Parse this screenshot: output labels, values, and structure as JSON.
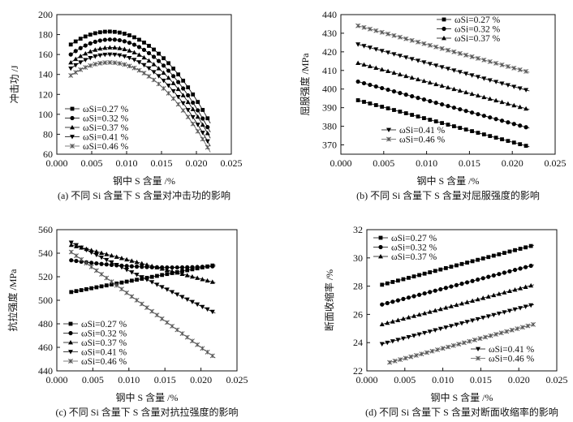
{
  "figure": {
    "colors": {
      "ink": "#111111",
      "series": "#000000",
      "grey_series": "#555555"
    }
  },
  "chart_data": [
    {
      "panel": "a",
      "type": "line",
      "caption": "(a) 不同 Si 含量下 S 含量对冲击功的影响",
      "xlabel": "钢中 S 含量 /%",
      "ylabel": "冲击功 /J",
      "xlim": [
        0.0,
        0.025
      ],
      "ylim": [
        60,
        200
      ],
      "xticks": [
        "0.000",
        "0.005",
        "0.010",
        "0.015",
        "0.020",
        "0.025"
      ],
      "yticks": [
        "60",
        "80",
        "100",
        "120",
        "140",
        "160",
        "180",
        "200"
      ],
      "legend_position": "bottom-left",
      "series": [
        {
          "name": "ωSi=0.27 %",
          "marker": "square",
          "model": "quad",
          "x_range": [
            0.002,
            0.022
          ],
          "points": [
            [
              0.002,
              170
            ],
            [
              0.0075,
              183
            ],
            [
              0.022,
              91
            ]
          ]
        },
        {
          "name": "ωSi=0.32 %",
          "marker": "circle",
          "model": "quad",
          "x_range": [
            0.002,
            0.022
          ],
          "points": [
            [
              0.002,
              160
            ],
            [
              0.0075,
              175
            ],
            [
              0.022,
              82
            ]
          ]
        },
        {
          "name": "ωSi=0.37 %",
          "marker": "triangle-up",
          "model": "quad",
          "x_range": [
            0.002,
            0.022
          ],
          "points": [
            [
              0.002,
              152
            ],
            [
              0.0075,
              167
            ],
            [
              0.022,
              76
            ]
          ]
        },
        {
          "name": "ωSi=0.41 %",
          "marker": "triangle-down",
          "model": "quad",
          "x_range": [
            0.002,
            0.022
          ],
          "points": [
            [
              0.002,
              146
            ],
            [
              0.0075,
              160
            ],
            [
              0.022,
              68
            ]
          ]
        },
        {
          "name": "ωSi=0.46 %",
          "marker": "star",
          "model": "quad",
          "x_range": [
            0.002,
            0.022
          ],
          "points": [
            [
              0.002,
              139
            ],
            [
              0.0075,
              152
            ],
            [
              0.022,
              62
            ]
          ]
        }
      ]
    },
    {
      "panel": "b",
      "type": "line",
      "caption": "(b) 不同 Si 含量下 S 含量对屈服强度的影响",
      "xlabel": "钢中 S 含量 /%",
      "ylabel": "屈服强度 /MPa",
      "xlim": [
        0.0,
        0.025
      ],
      "ylim": [
        365,
        440
      ],
      "xticks": [
        "0.000",
        "0.005",
        "0.010",
        "0.015",
        "0.020",
        "0.025"
      ],
      "yticks": [
        "370",
        "380",
        "390",
        "400",
        "410",
        "420",
        "430",
        "440"
      ],
      "legend_position": "split: top-right and bottom-left",
      "series": [
        {
          "name": "ωSi=0.27 %",
          "marker": "square",
          "model": "linear",
          "x_range": [
            0.002,
            0.022
          ],
          "points": [
            [
              0.002,
              394
            ],
            [
              0.022,
              369
            ]
          ]
        },
        {
          "name": "ωSi=0.32 %",
          "marker": "circle",
          "model": "linear",
          "x_range": [
            0.002,
            0.022
          ],
          "points": [
            [
              0.002,
              404
            ],
            [
              0.022,
              379
            ]
          ]
        },
        {
          "name": "ωSi=0.37 %",
          "marker": "triangle-up",
          "model": "linear",
          "x_range": [
            0.002,
            0.022
          ],
          "points": [
            [
              0.002,
              414
            ],
            [
              0.022,
              389
            ]
          ]
        },
        {
          "name": "ωSi=0.41 %",
          "marker": "triangle-down",
          "model": "linear",
          "x_range": [
            0.002,
            0.022
          ],
          "points": [
            [
              0.002,
              424
            ],
            [
              0.022,
              399
            ]
          ]
        },
        {
          "name": "ωSi=0.46 %",
          "marker": "star",
          "model": "linear",
          "x_range": [
            0.002,
            0.022
          ],
          "points": [
            [
              0.002,
              434
            ],
            [
              0.022,
              409
            ]
          ]
        }
      ]
    },
    {
      "panel": "c",
      "type": "line",
      "caption": "(c) 不同 Si 含量下 S 含量对抗拉强度的影响",
      "xlabel": "钢中 S 含量 /%",
      "ylabel": "抗拉强度 /MPa",
      "xlim": [
        0.0,
        0.025
      ],
      "ylim": [
        440,
        560
      ],
      "xticks": [
        "0.000",
        "0.005",
        "0.010",
        "0.015",
        "0.020",
        "0.025"
      ],
      "yticks": [
        "440",
        "460",
        "480",
        "500",
        "520",
        "540",
        "560"
      ],
      "legend_position": "bottom-left",
      "series": [
        {
          "name": "ωSi=0.27 %",
          "marker": "square",
          "model": "linear",
          "x_range": [
            0.002,
            0.022
          ],
          "points": [
            [
              0.002,
              507
            ],
            [
              0.022,
              530
            ]
          ]
        },
        {
          "name": "ωSi=0.32 %",
          "marker": "circle",
          "model": "quad",
          "x_range": [
            0.002,
            0.022
          ],
          "points": [
            [
              0.002,
              534
            ],
            [
              0.014,
              528
            ],
            [
              0.022,
              529
            ]
          ]
        },
        {
          "name": "ωSi=0.37 %",
          "marker": "triangle-up",
          "model": "linear",
          "x_range": [
            0.002,
            0.022
          ],
          "points": [
            [
              0.002,
              547
            ],
            [
              0.022,
              515
            ]
          ]
        },
        {
          "name": "ωSi=0.41 %",
          "marker": "triangle-down",
          "model": "linear",
          "x_range": [
            0.002,
            0.022
          ],
          "points": [
            [
              0.002,
              549
            ],
            [
              0.022,
              489
            ]
          ]
        },
        {
          "name": "ωSi=0.46 %",
          "marker": "star",
          "model": "linear",
          "x_range": [
            0.002,
            0.022
          ],
          "points": [
            [
              0.002,
              541
            ],
            [
              0.022,
              451
            ]
          ]
        }
      ]
    },
    {
      "panel": "d",
      "type": "line",
      "caption": "(d) 不同 Si 含量下 S 含量对断面收缩率的影响",
      "xlabel": "钢中 S 含量 /%",
      "ylabel": "断面收缩率 /%",
      "xlim": [
        0.0,
        0.025
      ],
      "ylim": [
        22,
        32
      ],
      "xticks": [
        "0.000",
        "0.005",
        "0.010",
        "0.015",
        "0.020",
        "0.025"
      ],
      "yticks": [
        "22",
        "24",
        "26",
        "28",
        "30",
        "32"
      ],
      "legend_position": "split: top-left and bottom-right",
      "series": [
        {
          "name": "ωSi=0.27 %",
          "marker": "square",
          "model": "linear",
          "x_range": [
            0.002,
            0.022
          ],
          "points": [
            [
              0.002,
              28.1
            ],
            [
              0.022,
              30.9
            ]
          ]
        },
        {
          "name": "ωSi=0.32 %",
          "marker": "circle",
          "model": "linear",
          "x_range": [
            0.002,
            0.022
          ],
          "points": [
            [
              0.002,
              26.7
            ],
            [
              0.022,
              29.5
            ]
          ]
        },
        {
          "name": "ωSi=0.37 %",
          "marker": "triangle-up",
          "model": "linear",
          "x_range": [
            0.002,
            0.022
          ],
          "points": [
            [
              0.002,
              25.3
            ],
            [
              0.022,
              28.1
            ]
          ]
        },
        {
          "name": "ωSi=0.41 %",
          "marker": "triangle-down",
          "model": "linear",
          "x_range": [
            0.002,
            0.022
          ],
          "points": [
            [
              0.002,
              23.9
            ],
            [
              0.022,
              26.7
            ]
          ]
        },
        {
          "name": "ωSi=0.46 %",
          "marker": "star",
          "model": "linear",
          "x_range": [
            0.003,
            0.022
          ],
          "points": [
            [
              0.003,
              22.6
            ],
            [
              0.022,
              25.3
            ]
          ]
        }
      ]
    }
  ]
}
